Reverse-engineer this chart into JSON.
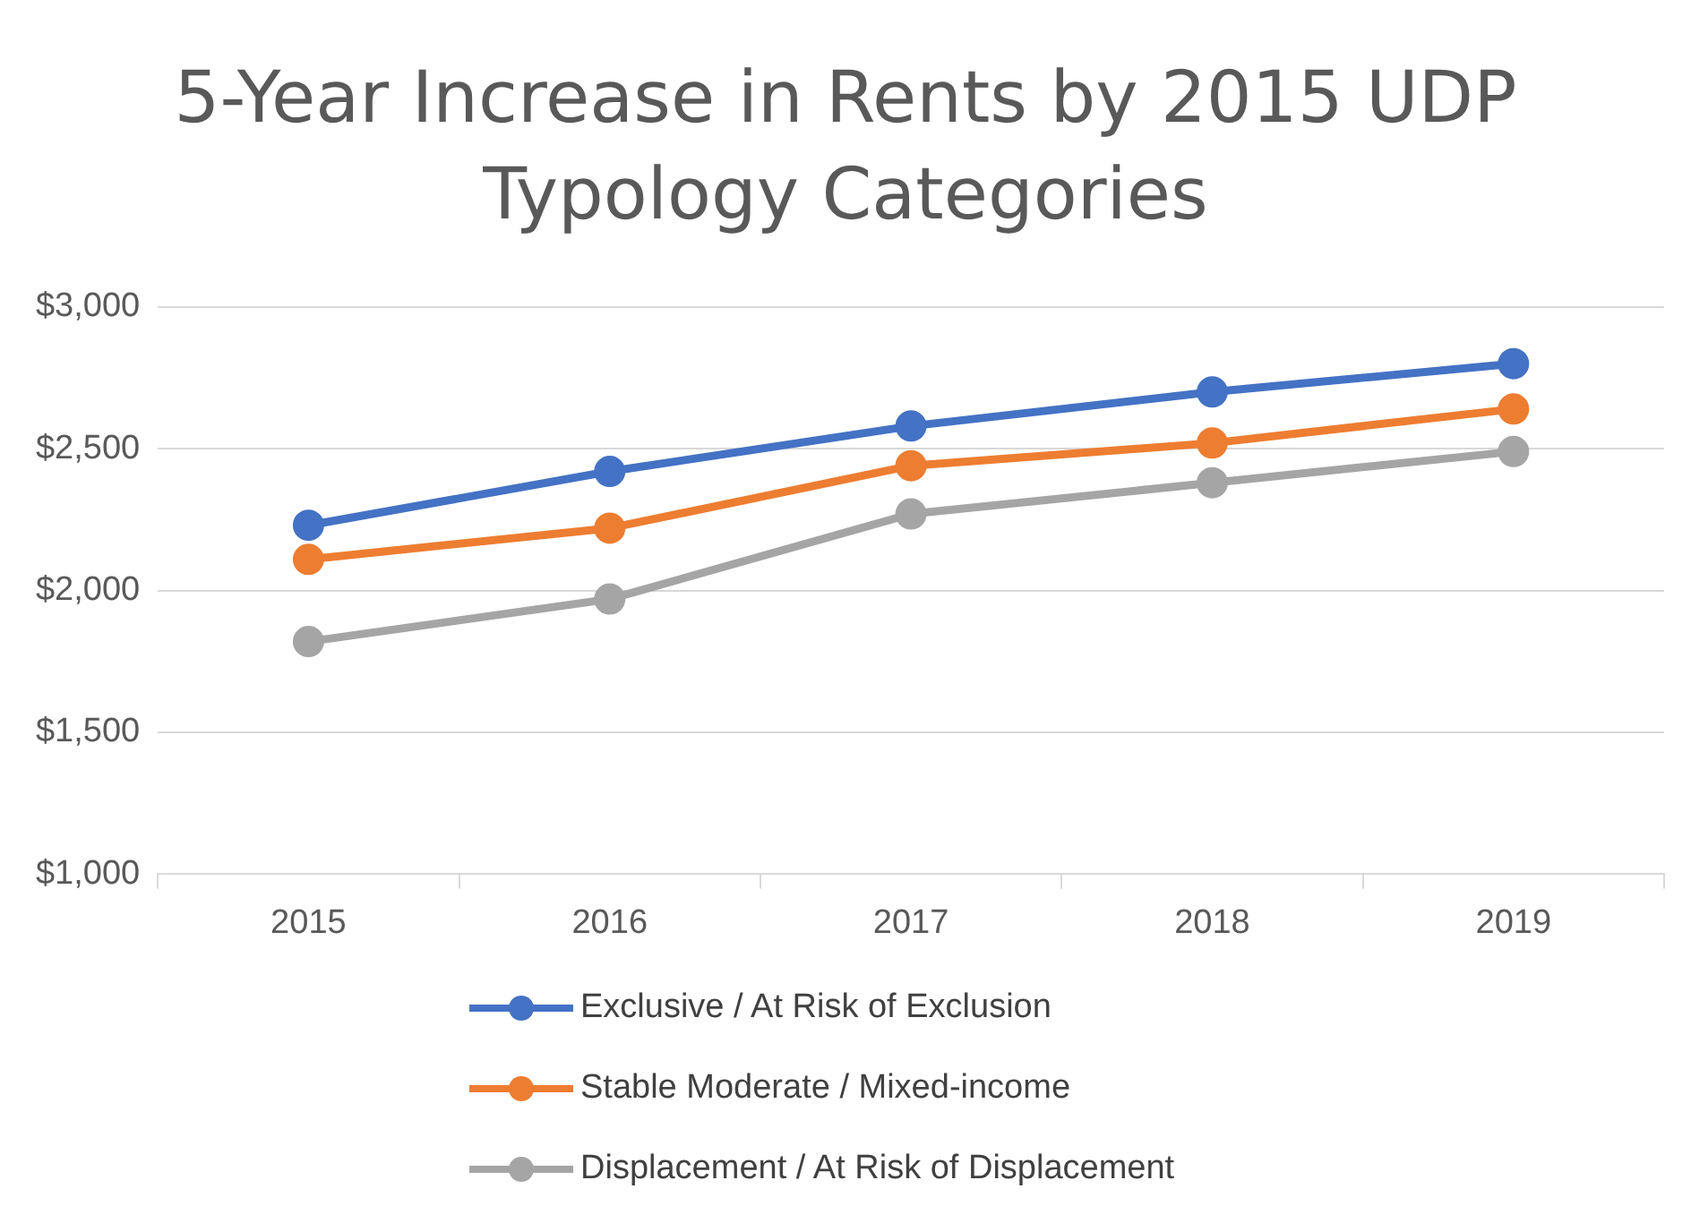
{
  "chart_data": {
    "type": "line",
    "title": "5-Year Increase in Rents by 2015 UDP Typology Categories",
    "categories": [
      "2015",
      "2016",
      "2017",
      "2018",
      "2019"
    ],
    "series": [
      {
        "name": "Exclusive / At Risk of Exclusion",
        "color": "#4472c4",
        "values": [
          2230,
          2420,
          2580,
          2700,
          2800
        ]
      },
      {
        "name": "Stable Moderate / Mixed-income",
        "color": "#ed7d31",
        "values": [
          2110,
          2220,
          2440,
          2520,
          2640
        ]
      },
      {
        "name": "Displacement / At Risk of Displacement",
        "color": "#a5a5a5",
        "values": [
          1820,
          1970,
          2270,
          2380,
          2490
        ]
      }
    ],
    "ylim": [
      1000,
      3000
    ],
    "yticks": [
      {
        "value": 1000,
        "label": "$1,000"
      },
      {
        "value": 1500,
        "label": "$1,500"
      },
      {
        "value": 2000,
        "label": "$2,000"
      },
      {
        "value": 2500,
        "label": "$2,500"
      },
      {
        "value": 3000,
        "label": "$3,000"
      }
    ],
    "grid": "y",
    "legend": "bottom",
    "marker": "circle",
    "line_style": "solid"
  }
}
